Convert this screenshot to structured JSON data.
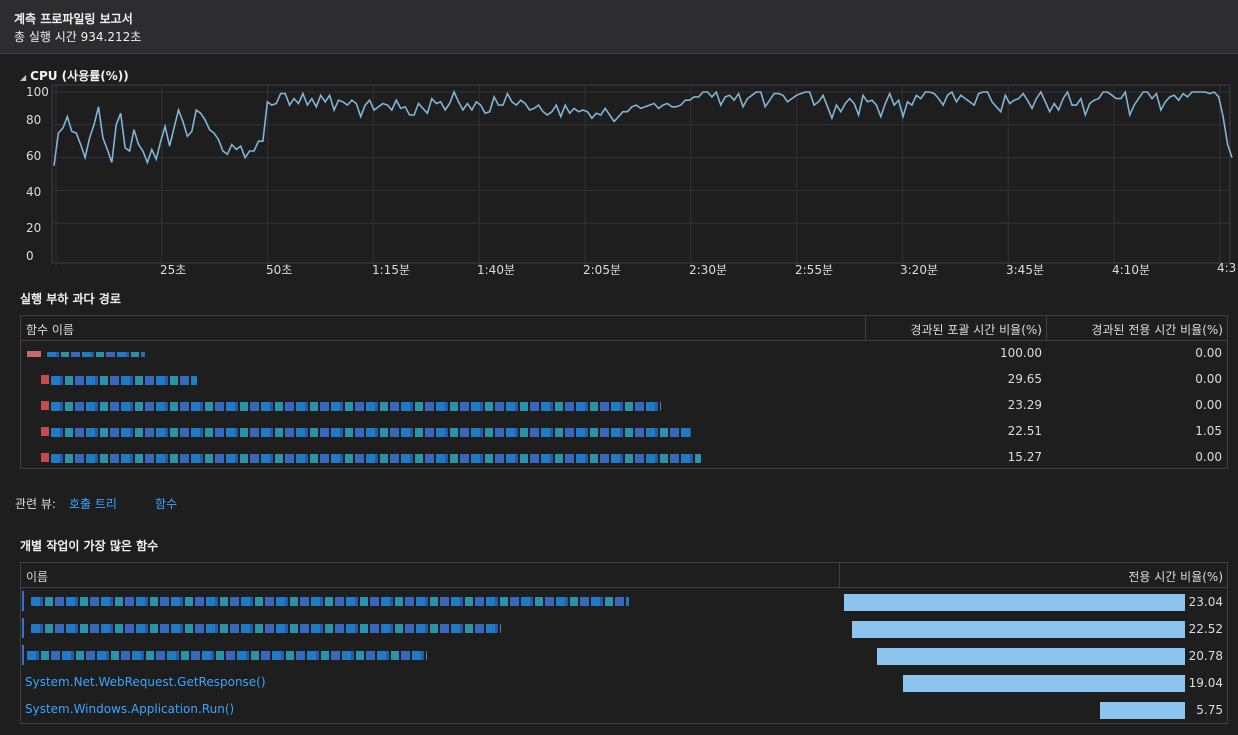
{
  "report": {
    "title": "계측 프로파일링 보고서",
    "subtitle": "총 실행 시간 934.212초"
  },
  "cpu_section": {
    "label": "CPU (사용률(%))"
  },
  "chart_data": {
    "type": "line",
    "title": "CPU (사용률(%))",
    "ylim": [
      0,
      100
    ],
    "y_ticks": [
      "100",
      "80",
      "60",
      "40",
      "20",
      "0"
    ],
    "x_ticks": [
      "25초",
      "50초",
      "1:15분",
      "1:40분",
      "2:05분",
      "2:30분",
      "2:55분",
      "3:20분",
      "3:45분",
      "4:10분",
      "4:3"
    ],
    "grid": true,
    "line_color": "#7fb5d5",
    "series": [
      {
        "values": [
          55,
          75,
          78,
          85,
          76,
          75,
          68,
          60,
          72,
          80,
          91,
          72,
          65,
          57,
          80,
          87,
          66,
          64,
          77,
          68,
          64,
          57,
          65,
          59,
          70,
          79,
          67,
          78,
          89,
          82,
          73,
          76,
          89,
          87,
          83,
          77,
          75,
          71,
          64,
          62,
          68,
          65,
          67,
          60,
          64,
          64,
          70,
          70,
          94,
          92,
          93,
          99,
          99,
          92,
          96,
          93,
          99,
          92,
          96,
          91,
          98,
          94,
          98,
          89,
          95,
          94,
          92,
          95,
          93,
          85,
          92,
          95,
          89,
          91,
          93,
          92,
          89,
          95,
          90,
          91,
          86,
          86,
          93,
          90,
          87,
          96,
          93,
          94,
          89,
          93,
          100,
          94,
          89,
          93,
          89,
          94,
          92,
          87,
          88,
          97,
          92,
          92,
          99,
          94,
          92,
          95,
          93,
          89,
          90,
          92,
          88,
          86,
          88,
          92,
          85,
          92,
          87,
          90,
          88,
          89,
          88,
          84,
          87,
          86,
          90,
          86,
          82,
          85,
          88,
          88,
          91,
          92,
          90,
          91,
          92,
          93,
          90,
          92,
          93,
          91,
          91,
          92,
          95,
          95,
          97,
          97,
          100,
          100,
          97,
          100,
          92,
          97,
          98,
          95,
          99,
          91,
          96,
          98,
          100,
          100,
          91,
          95,
          99,
          99,
          98,
          94,
          96,
          98,
          99,
          101,
          100,
          92,
          94,
          98,
          91,
          84,
          92,
          88,
          93,
          96,
          93,
          86,
          98,
          94,
          95,
          92,
          85,
          93,
          99,
          92,
          95,
          85,
          94,
          92,
          98,
          96,
          102,
          100,
          99,
          96,
          92,
          98,
          100,
          94,
          98,
          96,
          94,
          92,
          99,
          100,
          100,
          94,
          91,
          88,
          98,
          93,
          95,
          96,
          99,
          95,
          90,
          96,
          100,
          94,
          88,
          93,
          89,
          96,
          101,
          92,
          92,
          96,
          86,
          93,
          95,
          96,
          102,
          102,
          98,
          96,
          96,
          100,
          86,
          92,
          96,
          102,
          100,
          96,
          99,
          89,
          94,
          97,
          98,
          95,
          99,
          97,
          100,
          102,
          102,
          100,
          99,
          102,
          97,
          85,
          68,
          60
        ]
      }
    ]
  },
  "hot_path": {
    "title": "실행 부하 과다 경로",
    "columns": [
      "함수 이름",
      "경과된 포괄 시간 비율(%)",
      "경과된 전용 시간 비율(%)"
    ],
    "rows": [
      {
        "incl": "100.00",
        "excl": "0.00"
      },
      {
        "incl": "29.65",
        "excl": "0.00"
      },
      {
        "incl": "23.29",
        "excl": "0.00"
      },
      {
        "incl": "22.51",
        "excl": "1.05"
      },
      {
        "incl": "15.27",
        "excl": "0.00"
      }
    ]
  },
  "related_views": {
    "label": "관련 뷰:",
    "links": [
      "호출 트리",
      "함수"
    ]
  },
  "functions": {
    "title": "개별 작업이 가장 많은 함수",
    "columns": [
      "이름",
      "전용 시간 비율(%)"
    ],
    "rows": [
      {
        "name": "",
        "value": 23.04,
        "value_text": "23.04"
      },
      {
        "name": "",
        "value": 22.52,
        "value_text": "22.52"
      },
      {
        "name": "",
        "value": 20.78,
        "value_text": "20.78"
      },
      {
        "name": "System.Net.WebRequest.GetResponse()",
        "value": 19.04,
        "value_text": "19.04"
      },
      {
        "name": "System.Windows.Application.Run()",
        "value": 5.75,
        "value_text": "5.75"
      }
    ]
  }
}
